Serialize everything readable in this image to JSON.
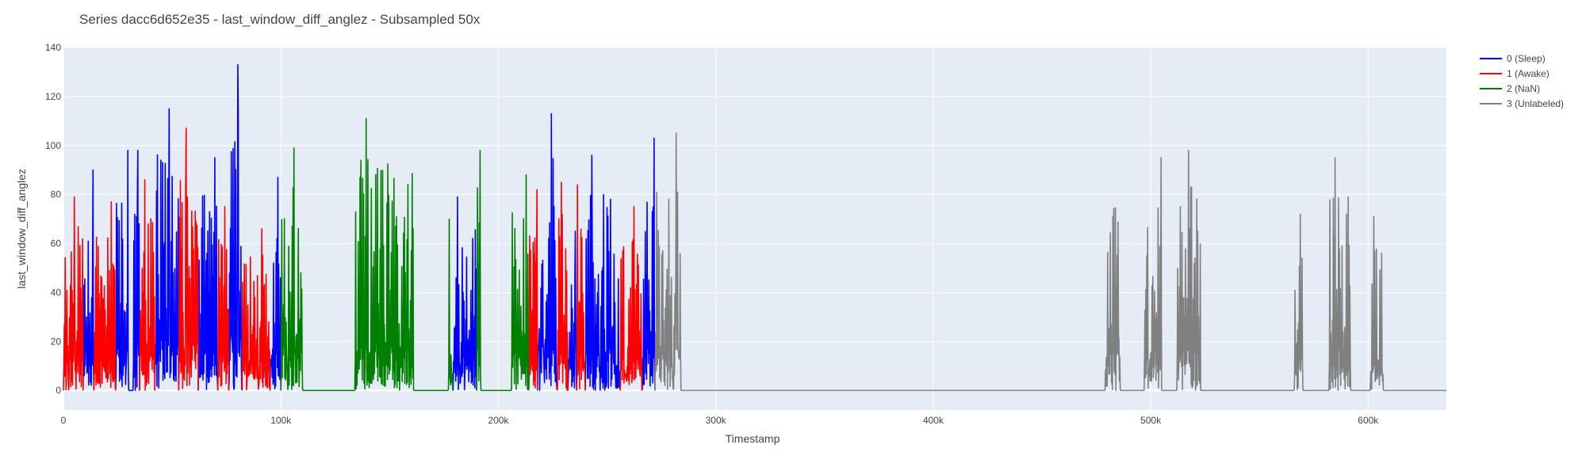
{
  "chart_data": {
    "type": "line",
    "title": "Series dacc6d652e35 - last_window_diff_anglez - Subsampled 50x",
    "xlabel": "Timestamp",
    "ylabel": "last_window_diff_anglez",
    "xlim": [
      0,
      636000
    ],
    "ylim": [
      -8,
      140
    ],
    "x_ticks": [
      0,
      100000,
      200000,
      300000,
      400000,
      500000,
      600000
    ],
    "x_tick_labels": [
      "0",
      "100k",
      "200k",
      "300k",
      "400k",
      "500k",
      "600k"
    ],
    "y_ticks": [
      0,
      20,
      40,
      60,
      80,
      100,
      120,
      140
    ],
    "y_tick_labels": [
      "0",
      "20",
      "40",
      "60",
      "80",
      "100",
      "120",
      "140"
    ],
    "grid": true,
    "legend_position": "top-right",
    "plot_background": "#e5ecf6",
    "series": [
      {
        "name": "0 (Sleep)",
        "color": "#0000ff",
        "segments": [
          {
            "x_start": 9000,
            "x_end": 14000,
            "peak": 90
          },
          {
            "x_start": 24000,
            "x_end": 30000,
            "peak": 98
          },
          {
            "x_start": 32000,
            "x_end": 35000,
            "peak": 98
          },
          {
            "x_start": 42000,
            "x_end": 53000,
            "peak": 115
          },
          {
            "x_start": 62000,
            "x_end": 71000,
            "peak": 95
          },
          {
            "x_start": 76000,
            "x_end": 82000,
            "peak": 133
          },
          {
            "x_start": 95000,
            "x_end": 100000,
            "peak": 87
          },
          {
            "x_start": 179000,
            "x_end": 190000,
            "peak": 79
          },
          {
            "x_start": 218000,
            "x_end": 227000,
            "peak": 113
          },
          {
            "x_start": 232000,
            "x_end": 236000,
            "peak": 65
          },
          {
            "x_start": 240000,
            "x_end": 256000,
            "peak": 96
          },
          {
            "x_start": 266000,
            "x_end": 272000,
            "peak": 103
          }
        ]
      },
      {
        "name": "1 (Awake)",
        "color": "#ff0000",
        "segments": [
          {
            "x_start": 0,
            "x_end": 9000,
            "peak": 79
          },
          {
            "x_start": 14000,
            "x_end": 24000,
            "peak": 77
          },
          {
            "x_start": 35000,
            "x_end": 42000,
            "peak": 86
          },
          {
            "x_start": 53000,
            "x_end": 62000,
            "peak": 107
          },
          {
            "x_start": 71000,
            "x_end": 76000,
            "peak": 75
          },
          {
            "x_start": 82000,
            "x_end": 95000,
            "peak": 66
          },
          {
            "x_start": 214000,
            "x_end": 218000,
            "peak": 82
          },
          {
            "x_start": 227000,
            "x_end": 232000,
            "peak": 85
          },
          {
            "x_start": 236000,
            "x_end": 240000,
            "peak": 84
          },
          {
            "x_start": 256000,
            "x_end": 266000,
            "peak": 75
          }
        ]
      },
      {
        "name": "2 (NaN)",
        "color": "#008000",
        "segments": [
          {
            "x_start": 100000,
            "x_end": 110000,
            "peak": 99
          },
          {
            "x_start": 134000,
            "x_end": 161000,
            "peak": 111
          },
          {
            "x_start": 177000,
            "x_end": 179000,
            "peak": 70
          },
          {
            "x_start": 190000,
            "x_end": 192000,
            "peak": 98
          },
          {
            "x_start": 206000,
            "x_end": 214000,
            "peak": 88
          }
        ]
      },
      {
        "name": "3 (Unlabeled)",
        "color": "#808080",
        "segments": [
          {
            "x_start": 272000,
            "x_end": 284000,
            "peak": 105
          },
          {
            "x_start": 479000,
            "x_end": 486000,
            "peak": 88
          },
          {
            "x_start": 497000,
            "x_end": 505000,
            "peak": 95
          },
          {
            "x_start": 512000,
            "x_end": 523000,
            "peak": 98
          },
          {
            "x_start": 566000,
            "x_end": 570000,
            "peak": 72
          },
          {
            "x_start": 582000,
            "x_end": 592000,
            "peak": 95
          },
          {
            "x_start": 601000,
            "x_end": 607000,
            "peak": 71
          }
        ]
      }
    ]
  }
}
